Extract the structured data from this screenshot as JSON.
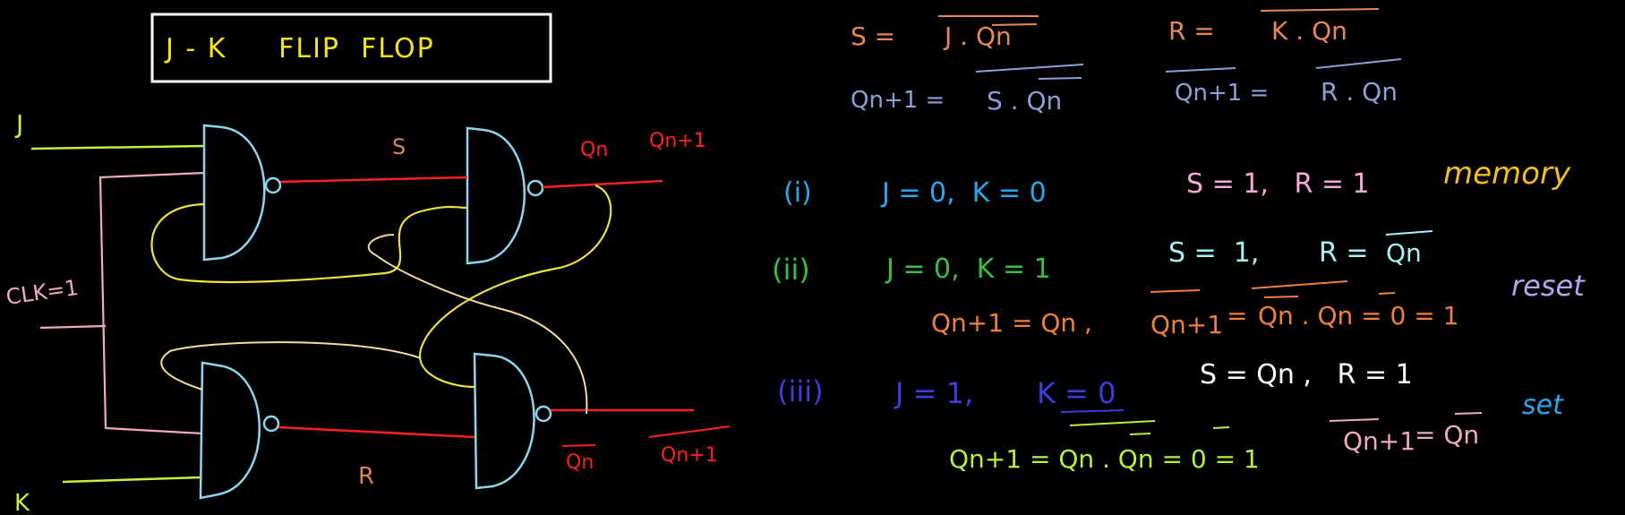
{
  "title": "J - K     FLIP  FLOP",
  "circuit": {
    "input_j": "J",
    "input_k": "K",
    "clock": "CLK=1",
    "node_s": "S",
    "node_r": "R",
    "out_qn": "Qn",
    "out_qn1": "Qn+1",
    "out_qn_bar": "Qn",
    "out_qn1_bar": "Qn+1"
  },
  "equations": {
    "s_lhs": "S =",
    "s_rhs": "J . Qn",
    "r_lhs": "R =",
    "r_rhs": "K . Qn",
    "qn1_lhs": "Qn+1 =",
    "qn1_rhs": "S . Qn",
    "qn1bar_lhs": "Qn+1 =",
    "qn1bar_rhs": "R . Qn"
  },
  "cases": [
    {
      "num": "(i)",
      "jk": "J = 0,  K = 0",
      "sr": "S = 1,   R = 1",
      "tag": "memory"
    },
    {
      "num": "(ii)",
      "jk": "J = 0,  K = 1",
      "sr_s": "S =  1,",
      "sr_r_lhs": "R =",
      "sr_r_rhs": "Qn",
      "line2_a": "Qn+1 = Qn ,",
      "line2_b_lhs": "Qn+1",
      "line2_b_rest": "=",
      "line2_b_qn": "Qn . Qn = 0 = 1",
      "tag": "reset"
    },
    {
      "num": "(iii)",
      "jk_j": "J = 1,",
      "jk_k": "K = 0",
      "sr": "S = Qn ,   R = 1",
      "line2_a": "Qn+1 = Qn . Qn = 0 = 1",
      "line2_b_lhs": "Qn+1",
      "line2_b_rhs": "= Qn",
      "tag": "set"
    }
  ],
  "colors": {
    "title": "#f5e61c",
    "wire_input": "#c8f040",
    "gate": "#8ed6f0",
    "wire_out": "#ff2020",
    "clock": "#f7a8c8",
    "feedback": "#f0e040",
    "feedback_light": "#f5dc9a",
    "sr_label": "#d9845a",
    "eq_orange": "#e8875a",
    "eq_blue": "#8aa0d8",
    "case1": "#29a8f0",
    "case1_sr": "#f7a8d8",
    "case1_tag": "#f0c020",
    "case2": "#38c040",
    "case2_sr": "#a8f0f8",
    "case2_line": "#f0803c",
    "case2_tag": "#b0a8f0",
    "case3": "#3d3de0",
    "case3_sr": "#ffffff",
    "case3_line": "#b8f040",
    "case3_line2": "#f0a8c8",
    "case3_tag": "#29a8f0"
  }
}
